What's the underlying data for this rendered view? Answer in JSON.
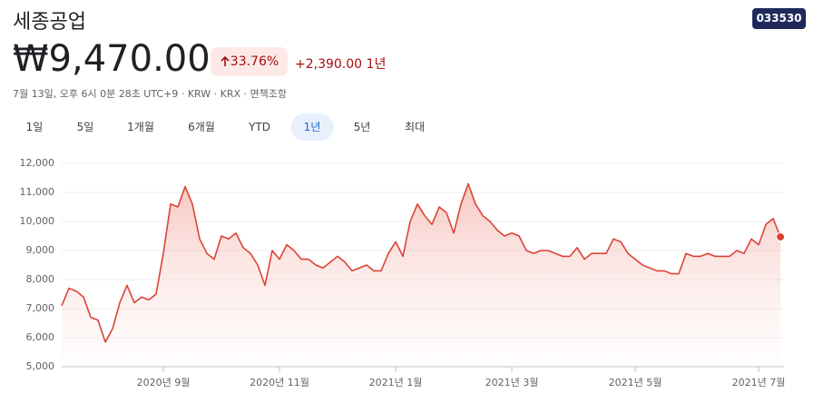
{
  "header": {
    "title": "세종공업",
    "ticker": "033530",
    "price": "₩9,470.00",
    "change_percent": "33.76%",
    "change": "+2,390.00",
    "period": "1년",
    "timestamp": "7월 13일, 오후 6시 0분 28초 UTC+9",
    "currency": "KRW",
    "exchange": "KRX",
    "disclaimer": "면책조항"
  },
  "tabs": {
    "items": [
      "1일",
      "5일",
      "1개월",
      "6개월",
      "YTD",
      "1년",
      "5년",
      "최대"
    ],
    "selected_index": 5
  },
  "chart_data": {
    "type": "line",
    "area": true,
    "color": "#db4437",
    "grid": true,
    "categories": [
      null,
      null,
      null,
      null,
      null,
      null,
      null,
      null,
      null,
      null,
      null,
      null,
      null,
      null,
      "2020년 9월",
      null,
      null,
      null,
      null,
      null,
      null,
      null,
      null,
      null,
      null,
      null,
      null,
      null,
      null,
      null,
      "2020년 11월",
      null,
      null,
      null,
      null,
      null,
      null,
      null,
      null,
      null,
      null,
      null,
      null,
      null,
      null,
      null,
      "2021년 1월",
      null,
      null,
      null,
      null,
      null,
      null,
      null,
      null,
      null,
      null,
      null,
      null,
      null,
      null,
      null,
      "2021년 3월",
      null,
      null,
      null,
      null,
      null,
      null,
      null,
      null,
      null,
      null,
      null,
      null,
      null,
      null,
      null,
      null,
      "2021년 5월",
      null,
      null,
      null,
      null,
      null,
      null,
      null,
      null,
      null,
      null,
      null,
      null,
      null,
      null,
      null,
      null,
      "2021년 7월",
      null,
      null,
      null
    ],
    "values": [
      7100,
      7700,
      7600,
      7400,
      6700,
      6600,
      5850,
      6300,
      7200,
      7800,
      7200,
      7400,
      7300,
      7500,
      8900,
      10600,
      10500,
      11200,
      10600,
      9400,
      8900,
      8700,
      9500,
      9400,
      9600,
      9100,
      8900,
      8500,
      7800,
      9000,
      8700,
      9200,
      9000,
      8700,
      8700,
      8500,
      8400,
      8600,
      8800,
      8600,
      8300,
      8400,
      8500,
      8300,
      8300,
      8900,
      9300,
      8800,
      10000,
      10600,
      10200,
      9900,
      10500,
      10300,
      9600,
      10600,
      11300,
      10600,
      10200,
      10000,
      9700,
      9500,
      9600,
      9500,
      9000,
      8900,
      9000,
      9000,
      8900,
      8800,
      8800,
      9100,
      8700,
      8900,
      8900,
      8900,
      9400,
      9300,
      8900,
      8700,
      8500,
      8400,
      8300,
      8300,
      8200,
      8200,
      8900,
      8800,
      8800,
      8900,
      8800,
      8800,
      8800,
      9000,
      8900,
      9400,
      9200,
      9900,
      10100,
      9470
    ],
    "ylim": [
      5000,
      12000
    ],
    "yticks": [
      {
        "value": 5000,
        "label": "5,000"
      },
      {
        "value": 6000,
        "label": "6,000"
      },
      {
        "value": 7000,
        "label": "7,000"
      },
      {
        "value": 8000,
        "label": "8,000"
      },
      {
        "value": 9000,
        "label": "9,000"
      },
      {
        "value": 10000,
        "label": "10,000"
      },
      {
        "value": 11000,
        "label": "11,000"
      },
      {
        "value": 12000,
        "label": "12,000"
      }
    ]
  }
}
